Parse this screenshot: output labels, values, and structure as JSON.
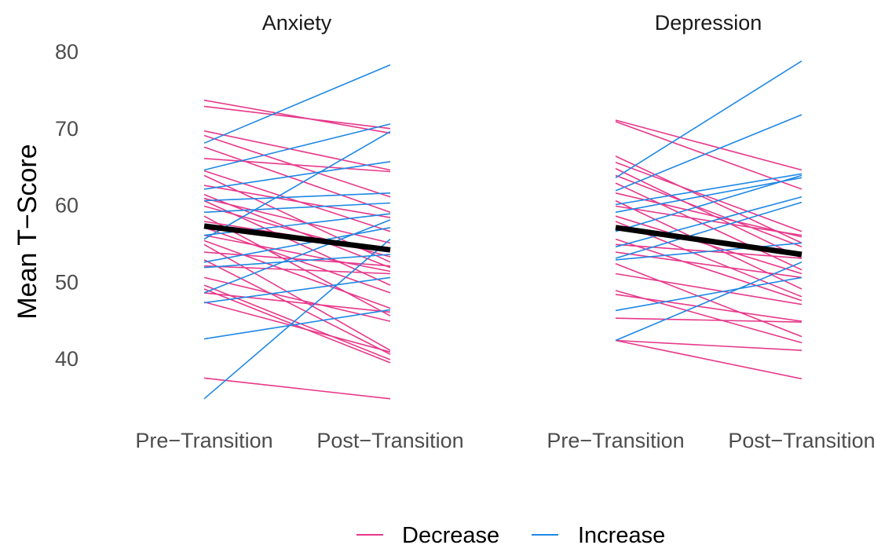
{
  "colors": {
    "decrease": "#e7388a",
    "increase": "#1e88e5",
    "mean": "#000000",
    "text": "#4d4d4d"
  },
  "chart_data": {
    "type": "line",
    "ylabel": "Mean T−Score",
    "ylim": [
      33,
      81
    ],
    "yticks": [
      40,
      50,
      60,
      70,
      80
    ],
    "categories": [
      "Pre−Transition",
      "Post−Transition"
    ],
    "grid": false,
    "legend": {
      "position": "bottom",
      "entries": [
        {
          "name": "Decrease",
          "color": "#e7388a"
        },
        {
          "name": "Increase",
          "color": "#1e88e5"
        }
      ]
    },
    "panels": [
      {
        "title": "Anxiety",
        "mean": {
          "pre": 57.2,
          "post": 54.1
        },
        "lines": [
          {
            "pre": 73.6,
            "post": 69.3,
            "group": "Decrease"
          },
          {
            "pre": 72.8,
            "post": 69.9,
            "group": "Decrease"
          },
          {
            "pre": 69.6,
            "post": 64.5,
            "group": "Decrease"
          },
          {
            "pre": 69.0,
            "post": 61.0,
            "group": "Decrease"
          },
          {
            "pre": 67.5,
            "post": 59.0,
            "group": "Decrease"
          },
          {
            "pre": 66.0,
            "post": 64.3,
            "group": "Decrease"
          },
          {
            "pre": 64.4,
            "post": 56.5,
            "group": "Decrease"
          },
          {
            "pre": 63.8,
            "post": 52.5,
            "group": "Decrease"
          },
          {
            "pre": 62.5,
            "post": 58.3,
            "group": "Decrease"
          },
          {
            "pre": 61.3,
            "post": 51.8,
            "group": "Decrease"
          },
          {
            "pre": 60.8,
            "post": 55.0,
            "group": "Decrease"
          },
          {
            "pre": 60.5,
            "post": 49.5,
            "group": "Decrease"
          },
          {
            "pre": 59.8,
            "post": 53.2,
            "group": "Decrease"
          },
          {
            "pre": 58.5,
            "post": 45.5,
            "group": "Decrease"
          },
          {
            "pre": 57.8,
            "post": 54.0,
            "group": "Decrease"
          },
          {
            "pre": 57.0,
            "post": 48.5,
            "group": "Decrease"
          },
          {
            "pre": 56.0,
            "post": 51.3,
            "group": "Decrease"
          },
          {
            "pre": 55.3,
            "post": 46.5,
            "group": "Decrease"
          },
          {
            "pre": 54.8,
            "post": 41.0,
            "group": "Decrease"
          },
          {
            "pre": 53.8,
            "post": 52.0,
            "group": "Decrease"
          },
          {
            "pre": 52.8,
            "post": 40.5,
            "group": "Decrease"
          },
          {
            "pre": 52.0,
            "post": 51.0,
            "group": "Decrease"
          },
          {
            "pre": 50.5,
            "post": 44.8,
            "group": "Decrease"
          },
          {
            "pre": 49.5,
            "post": 39.8,
            "group": "Decrease"
          },
          {
            "pre": 49.0,
            "post": 39.4,
            "group": "Decrease"
          },
          {
            "pre": 48.5,
            "post": 46.0,
            "group": "Decrease"
          },
          {
            "pre": 47.3,
            "post": 40.8,
            "group": "Decrease"
          },
          {
            "pre": 37.4,
            "post": 34.7,
            "group": "Decrease"
          },
          {
            "pre": 68.0,
            "post": 78.2,
            "group": "Increase"
          },
          {
            "pre": 64.5,
            "post": 70.5,
            "group": "Increase"
          },
          {
            "pre": 62.0,
            "post": 65.6,
            "group": "Increase"
          },
          {
            "pre": 60.5,
            "post": 61.5,
            "group": "Increase"
          },
          {
            "pre": 59.0,
            "post": 60.2,
            "group": "Increase"
          },
          {
            "pre": 56.0,
            "post": 58.8,
            "group": "Increase"
          },
          {
            "pre": 55.5,
            "post": 69.5,
            "group": "Increase"
          },
          {
            "pre": 52.5,
            "post": 57.0,
            "group": "Increase"
          },
          {
            "pre": 51.8,
            "post": 53.5,
            "group": "Increase"
          },
          {
            "pre": 48.5,
            "post": 58.0,
            "group": "Increase"
          },
          {
            "pre": 47.2,
            "post": 50.5,
            "group": "Increase"
          },
          {
            "pre": 42.5,
            "post": 46.3,
            "group": "Increase"
          },
          {
            "pre": 34.7,
            "post": 55.5,
            "group": "Increase"
          }
        ]
      },
      {
        "title": "Depression",
        "mean": {
          "pre": 57.0,
          "post": 53.5
        },
        "lines": [
          {
            "pre": 71.0,
            "post": 64.5,
            "group": "Decrease"
          },
          {
            "pre": 70.8,
            "post": 62.0,
            "group": "Decrease"
          },
          {
            "pre": 66.3,
            "post": 55.0,
            "group": "Decrease"
          },
          {
            "pre": 65.5,
            "post": 56.5,
            "group": "Decrease"
          },
          {
            "pre": 64.7,
            "post": 53.0,
            "group": "Decrease"
          },
          {
            "pre": 63.8,
            "post": 54.5,
            "group": "Decrease"
          },
          {
            "pre": 62.8,
            "post": 51.5,
            "group": "Decrease"
          },
          {
            "pre": 61.5,
            "post": 55.8,
            "group": "Decrease"
          },
          {
            "pre": 60.5,
            "post": 49.0,
            "group": "Decrease"
          },
          {
            "pre": 59.8,
            "post": 56.0,
            "group": "Decrease"
          },
          {
            "pre": 58.5,
            "post": 51.0,
            "group": "Decrease"
          },
          {
            "pre": 57.8,
            "post": 48.0,
            "group": "Decrease"
          },
          {
            "pre": 55.5,
            "post": 47.5,
            "group": "Decrease"
          },
          {
            "pre": 54.8,
            "post": 53.0,
            "group": "Decrease"
          },
          {
            "pre": 53.8,
            "post": 50.5,
            "group": "Decrease"
          },
          {
            "pre": 52.3,
            "post": 42.8,
            "group": "Decrease"
          },
          {
            "pre": 51.0,
            "post": 47.0,
            "group": "Decrease"
          },
          {
            "pre": 48.8,
            "post": 42.0,
            "group": "Decrease"
          },
          {
            "pre": 48.3,
            "post": 44.8,
            "group": "Decrease"
          },
          {
            "pre": 45.2,
            "post": 44.7,
            "group": "Decrease"
          },
          {
            "pre": 42.3,
            "post": 37.3,
            "group": "Decrease"
          },
          {
            "pre": 42.3,
            "post": 41.0,
            "group": "Decrease"
          },
          {
            "pre": 63.5,
            "post": 78.7,
            "group": "Increase"
          },
          {
            "pre": 61.8,
            "post": 71.7,
            "group": "Increase"
          },
          {
            "pre": 60.0,
            "post": 64.0,
            "group": "Increase"
          },
          {
            "pre": 59.0,
            "post": 63.5,
            "group": "Increase"
          },
          {
            "pre": 56.5,
            "post": 63.8,
            "group": "Increase"
          },
          {
            "pre": 54.5,
            "post": 61.0,
            "group": "Increase"
          },
          {
            "pre": 53.0,
            "post": 60.3,
            "group": "Increase"
          },
          {
            "pre": 52.8,
            "post": 55.0,
            "group": "Increase"
          },
          {
            "pre": 46.2,
            "post": 50.5,
            "group": "Increase"
          },
          {
            "pre": 42.3,
            "post": 52.5,
            "group": "Increase"
          }
        ]
      }
    ]
  }
}
